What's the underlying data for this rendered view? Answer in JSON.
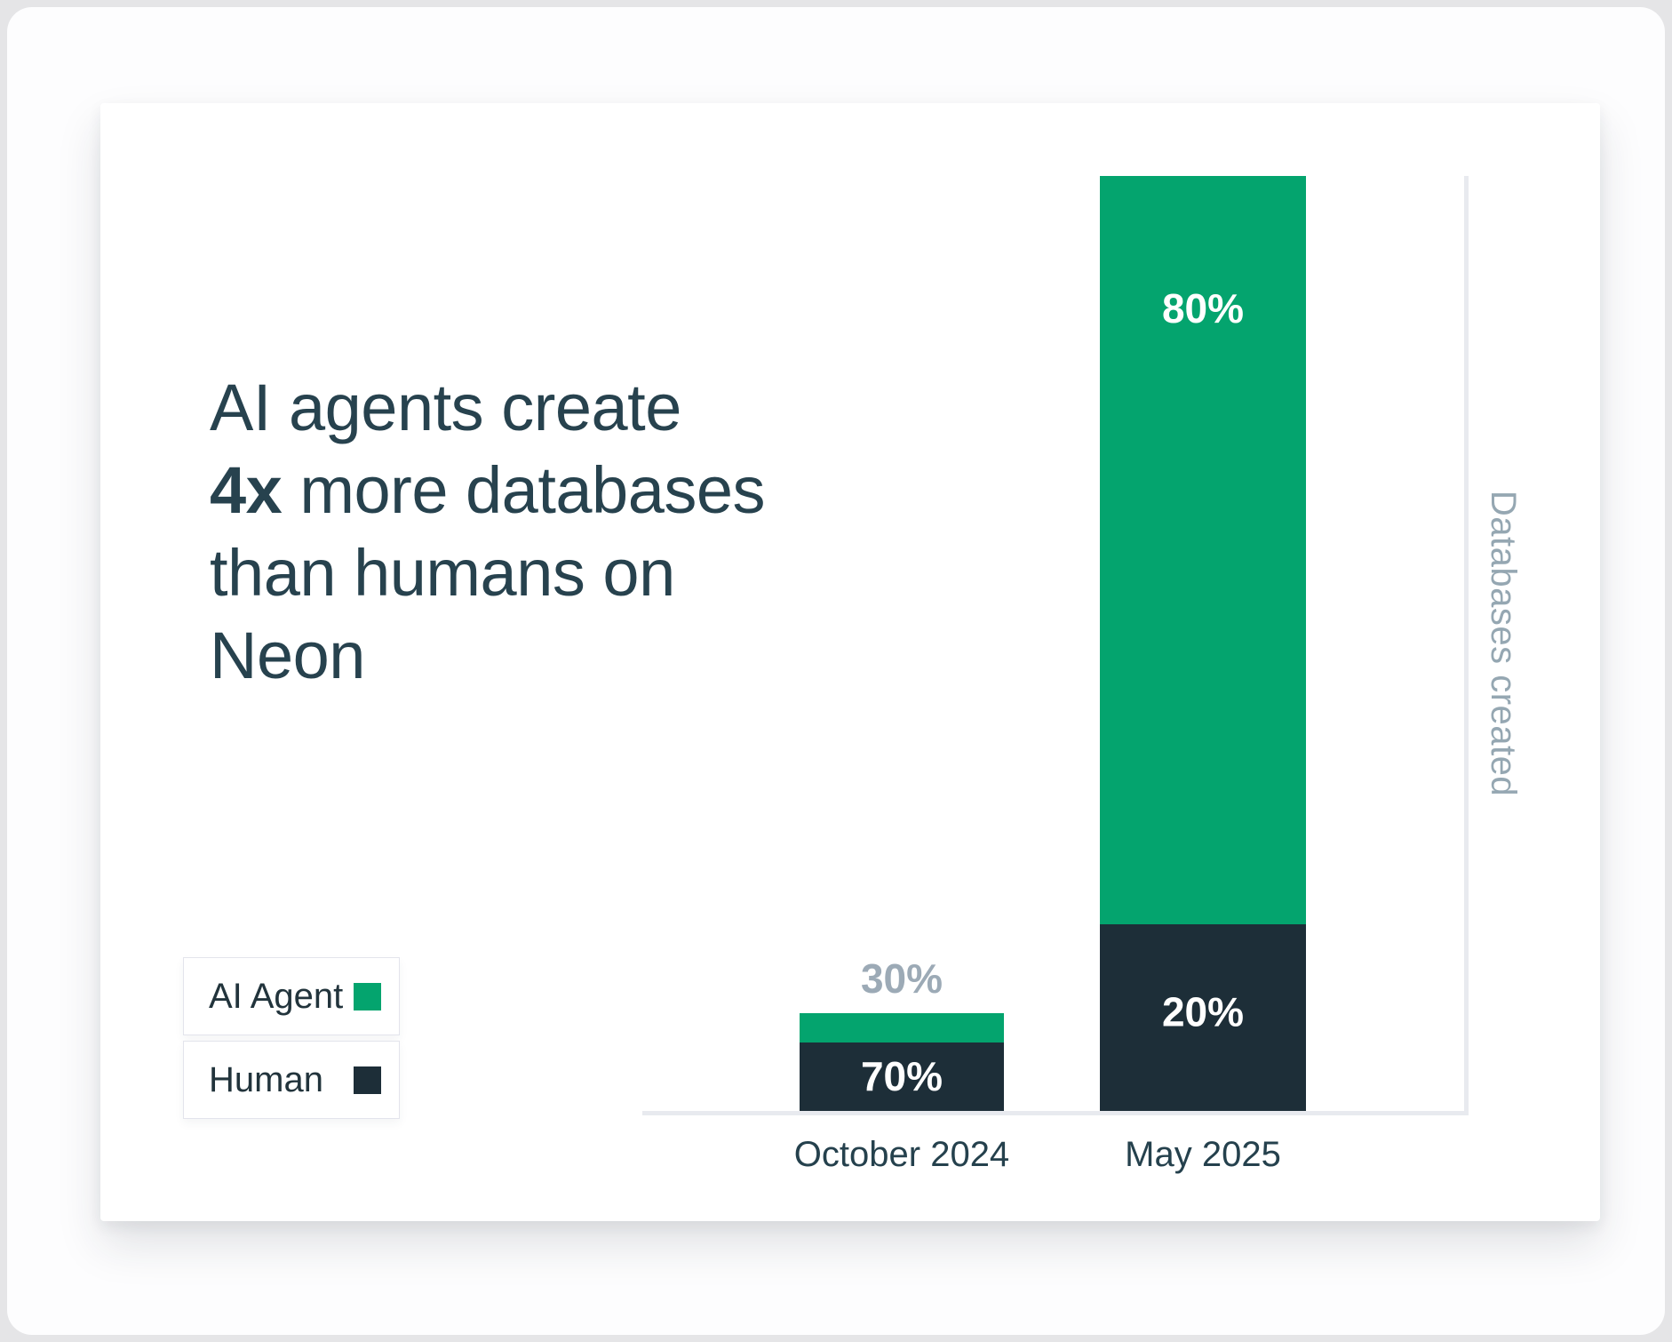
{
  "page": {
    "background": "#e5e5e7",
    "frame_background": "#fdfdfe",
    "card_background": "#ffffff"
  },
  "title": {
    "line1": "AI agents create",
    "line2_bold": "4x",
    "line2_rest": " more databases",
    "line3": "than humans on",
    "line4": "Neon",
    "color": "#27424e"
  },
  "legend": {
    "items": [
      {
        "label": "AI Agent",
        "color": "#04a46e"
      },
      {
        "label": "Human",
        "color": "#1d2e38"
      }
    ]
  },
  "chart_data": {
    "type": "bar",
    "stacked": true,
    "title": "AI agents create 4x more databases than humans on Neon",
    "categories": [
      "October 2024",
      "May 2025"
    ],
    "series": [
      {
        "name": "AI Agent",
        "color": "#04a46e",
        "values_pct": [
          30,
          80
        ]
      },
      {
        "name": "Human",
        "color": "#1d2e38",
        "values_pct": [
          70,
          20
        ]
      }
    ],
    "bar_total_fractions": [
      0.105,
      1.0
    ],
    "value_labels": [
      {
        "ai": "30%",
        "ai_position": "above-bar",
        "human": "70%"
      },
      {
        "ai": "80%",
        "ai_position": "inside-top",
        "human": "20%"
      }
    ],
    "ylabel": "Databases created",
    "xlabel": "",
    "grid": false,
    "legend_position": "bottom-left",
    "axis_color": "#e8eaef",
    "above_label_color": "#9caab6"
  }
}
